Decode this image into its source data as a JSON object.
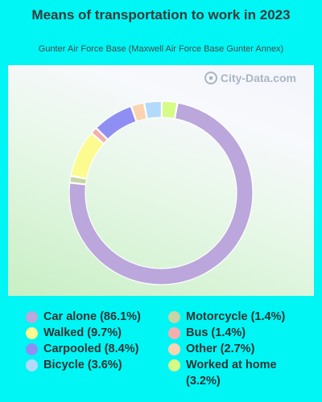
{
  "title": "Means of transportation to work in 2023",
  "subtitle": "Gunter Air Force Base (Maxwell Air Force Base Gunter Annex)",
  "watermark": "City-Data.com",
  "chart_data": {
    "type": "donut",
    "title": "Means of transportation to work in 2023",
    "subtitle": "Gunter Air Force Base (Maxwell Air Force Base Gunter Annex)",
    "legend_position": "bottom",
    "slices": [
      {
        "name": "Car alone",
        "value": 86.1,
        "label": "Car alone (86.1%)",
        "color": "#bba7db"
      },
      {
        "name": "Motorcycle",
        "value": 1.4,
        "label": "Motorcycle (1.4%)",
        "color": "#c6d4a6"
      },
      {
        "name": "Walked",
        "value": 9.7,
        "label": "Walked (9.7%)",
        "color": "#fbfb8f"
      },
      {
        "name": "Bus",
        "value": 1.4,
        "label": "Bus (1.4%)",
        "color": "#f4aeae"
      },
      {
        "name": "Carpooled",
        "value": 8.4,
        "label": "Carpooled (8.4%)",
        "color": "#8f8ff3"
      },
      {
        "name": "Other",
        "value": 2.7,
        "label": "Other (2.7%)",
        "color": "#fbd3b0"
      },
      {
        "name": "Bicycle",
        "value": 3.6,
        "label": "Bicycle (3.6%)",
        "color": "#b3dafb"
      },
      {
        "name": "Worked at home",
        "value": 3.2,
        "label": "Worked at home (3.2%)",
        "color": "#d6fb86"
      }
    ]
  }
}
